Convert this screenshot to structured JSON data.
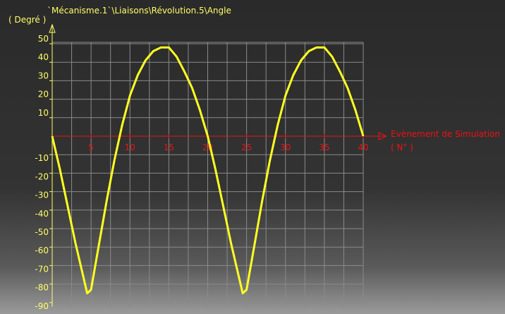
{
  "colors": {
    "curve": "#ffff22",
    "y_axis": "#ffff66",
    "x_axis": "#ee1111",
    "grid": "#8a8a8a"
  },
  "chart_data": {
    "type": "line",
    "title": "`Mécanisme.1`\\Liaisons\\Révolution.5\\Angle",
    "ylabel": "( Degré )",
    "xlabel": "Evènement de Simulation",
    "xunit": "( N° )",
    "xlim": [
      0,
      40
    ],
    "ylim": [
      -90,
      50
    ],
    "grid": true,
    "x_ticks": [
      5,
      10,
      15,
      20,
      25,
      30,
      35,
      40
    ],
    "y_ticks": [
      50,
      40,
      30,
      20,
      10,
      -10,
      -20,
      -30,
      -40,
      -50,
      -60,
      -70,
      -80,
      -90
    ],
    "series": [
      {
        "x": [
          0,
          1,
          2,
          3,
          4,
          4.5,
          5,
          6,
          7,
          8,
          9,
          10,
          11,
          12,
          13,
          14,
          14.5,
          15,
          16,
          17,
          18,
          19,
          20,
          21,
          22,
          23,
          24,
          24.5,
          25,
          26,
          27,
          28,
          29,
          30,
          31,
          32,
          33,
          34,
          34.5,
          35,
          36,
          37,
          38,
          39,
          40
        ],
        "y": [
          0,
          -18,
          -38,
          -58,
          -76,
          -85,
          -83,
          -59,
          -35,
          -13,
          6,
          22,
          33,
          41,
          46,
          48,
          48,
          48,
          43,
          35,
          26,
          14,
          0,
          -18,
          -38,
          -58,
          -76,
          -85,
          -83,
          -59,
          -35,
          -13,
          6,
          22,
          33,
          41,
          46,
          48,
          48,
          48,
          43,
          35,
          26,
          14,
          0
        ]
      }
    ]
  }
}
